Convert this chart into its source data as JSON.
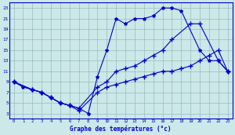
{
  "xlabel": "Graphe des températures (°c)",
  "xlim": [
    -0.5,
    23.5
  ],
  "ylim": [
    2,
    24
  ],
  "xticks": [
    0,
    1,
    2,
    3,
    4,
    5,
    6,
    7,
    8,
    9,
    10,
    11,
    12,
    13,
    14,
    15,
    16,
    17,
    18,
    19,
    20,
    21,
    22,
    23
  ],
  "yticks": [
    3,
    5,
    7,
    9,
    11,
    13,
    15,
    17,
    19,
    21,
    23
  ],
  "bg_color": "#cce8e8",
  "line_color": "#0000cc",
  "grid_color": "#99bbbb",
  "line1_x": [
    0,
    1,
    2,
    3,
    4,
    5,
    6,
    7,
    8,
    9,
    10,
    11,
    12,
    13,
    14,
    15,
    16,
    17,
    18,
    20,
    21,
    22,
    23
  ],
  "line1_y": [
    9,
    8,
    7.5,
    7,
    6,
    5,
    4.5,
    4,
    3,
    10,
    15,
    21,
    20,
    21,
    21,
    21.5,
    23,
    23,
    22.5,
    15,
    13,
    13,
    11
  ],
  "line2_x": [
    0,
    2,
    3,
    4,
    5,
    6,
    7,
    9,
    10,
    11,
    12,
    13,
    14,
    15,
    16,
    17,
    19,
    20,
    22,
    23
  ],
  "line2_y": [
    9,
    7.5,
    7,
    6,
    5,
    4.5,
    4,
    8,
    9,
    11,
    11.5,
    12,
    13,
    14,
    15,
    17,
    20,
    20,
    13,
    11
  ],
  "line3_x": [
    0,
    2,
    3,
    4,
    5,
    6,
    7,
    9,
    10,
    11,
    12,
    13,
    14,
    15,
    16,
    17,
    18,
    19,
    20,
    21,
    22,
    23
  ],
  "line3_y": [
    9,
    7.5,
    7,
    6,
    5,
    4.5,
    3.5,
    7,
    8,
    8.5,
    9,
    9.5,
    10,
    10.5,
    11,
    11,
    11.5,
    12,
    13,
    14,
    15,
    11
  ]
}
